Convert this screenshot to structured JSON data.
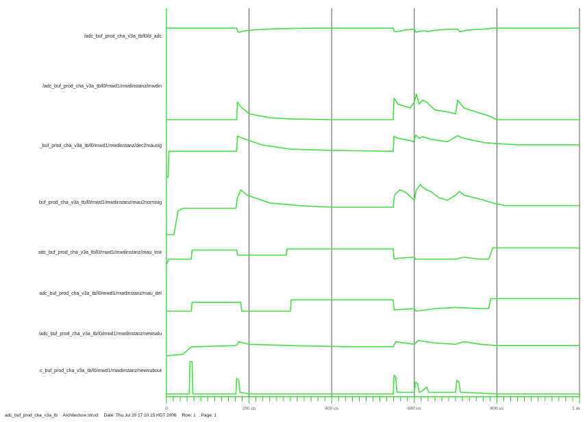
{
  "chart_data": {
    "type": "line",
    "title": "",
    "xlabel": "",
    "ylabel": "",
    "x_ticks": [
      "0",
      "200 us",
      "400 us",
      "600 us",
      "800 us",
      "1 m"
    ],
    "x_range": [
      0,
      1000
    ],
    "colors": {
      "trace": "#44dd44",
      "grid": "#555555",
      "axis": "#22cc22",
      "background": "#ffffff"
    },
    "series": [
      {
        "name": "/adc_buf_prod_cha_v3a_tb/l0/d_adc",
        "points": [
          [
            0,
            0.97
          ],
          [
            170,
            0.97
          ],
          [
            172,
            0.86
          ],
          [
            172,
            0.84
          ],
          [
            175,
            0.8
          ],
          [
            190,
            0.86
          ],
          [
            215,
            0.9
          ],
          [
            260,
            0.94
          ],
          [
            310,
            0.96
          ],
          [
            370,
            0.97
          ],
          [
            450,
            0.97
          ],
          [
            549,
            0.97
          ],
          [
            551,
            0.85
          ],
          [
            555,
            0.82
          ],
          [
            575,
            0.88
          ],
          [
            600,
            0.93
          ],
          [
            604,
            0.8
          ],
          [
            612,
            0.84
          ],
          [
            625,
            0.86
          ],
          [
            630,
            0.83
          ],
          [
            650,
            0.88
          ],
          [
            680,
            0.92
          ],
          [
            705,
            0.93
          ],
          [
            710,
            0.82
          ],
          [
            725,
            0.88
          ],
          [
            755,
            0.92
          ],
          [
            780,
            0.94
          ],
          [
            785,
            0.97
          ],
          [
            1000,
            0.97
          ]
        ]
      },
      {
        "name": "/adc_buf_prod_cha_v3a_tb/l0/mwd1/mwdinstanz/mwdin",
        "points": [
          [
            0,
            0.0
          ],
          [
            170,
            0.0
          ],
          [
            172,
            0.45
          ],
          [
            180,
            0.33
          ],
          [
            200,
            0.15
          ],
          [
            250,
            0.05
          ],
          [
            300,
            0.02
          ],
          [
            400,
            0.0
          ],
          [
            549,
            0.0
          ],
          [
            551,
            0.55
          ],
          [
            560,
            0.4
          ],
          [
            590,
            0.3
          ],
          [
            600,
            0.45
          ],
          [
            605,
            0.65
          ],
          [
            612,
            0.4
          ],
          [
            620,
            0.5
          ],
          [
            630,
            0.45
          ],
          [
            650,
            0.25
          ],
          [
            680,
            0.2
          ],
          [
            700,
            0.15
          ],
          [
            705,
            0.5
          ],
          [
            720,
            0.3
          ],
          [
            750,
            0.2
          ],
          [
            780,
            0.1
          ],
          [
            800,
            0.0
          ],
          [
            1000,
            0.0
          ]
        ]
      },
      {
        "name": "_buf_prod_cha_v3a_tb/l0/mwd1/mwdinstanz/dec2mausig",
        "points": [
          [
            0,
            0.0
          ],
          [
            4,
            0.0
          ],
          [
            6,
            0.6
          ],
          [
            170,
            0.6
          ],
          [
            172,
            0.95
          ],
          [
            185,
            0.9
          ],
          [
            230,
            0.75
          ],
          [
            300,
            0.65
          ],
          [
            400,
            0.62
          ],
          [
            549,
            0.6
          ],
          [
            551,
            0.95
          ],
          [
            560,
            0.9
          ],
          [
            590,
            0.85
          ],
          [
            598,
            0.82
          ],
          [
            604,
            0.98
          ],
          [
            612,
            0.9
          ],
          [
            620,
            0.94
          ],
          [
            640,
            0.88
          ],
          [
            680,
            0.82
          ],
          [
            705,
            0.96
          ],
          [
            720,
            0.9
          ],
          [
            770,
            0.8
          ],
          [
            800,
            0.78
          ],
          [
            850,
            0.75
          ],
          [
            1000,
            0.75
          ]
        ]
      },
      {
        "name": "buf_prod_cha_v3a_tb/l0/mwd1/mwdinstanz/mau2normsig",
        "points": [
          [
            0,
            0.0
          ],
          [
            18,
            0.0
          ],
          [
            28,
            0.45
          ],
          [
            40,
            0.5
          ],
          [
            168,
            0.5
          ],
          [
            172,
            0.7
          ],
          [
            180,
            0.85
          ],
          [
            195,
            0.75
          ],
          [
            250,
            0.6
          ],
          [
            320,
            0.55
          ],
          [
            400,
            0.52
          ],
          [
            549,
            0.52
          ],
          [
            552,
            0.75
          ],
          [
            565,
            0.85
          ],
          [
            580,
            0.8
          ],
          [
            600,
            0.65
          ],
          [
            605,
            0.85
          ],
          [
            615,
            0.95
          ],
          [
            620,
            0.9
          ],
          [
            630,
            0.85
          ],
          [
            640,
            0.82
          ],
          [
            660,
            0.7
          ],
          [
            680,
            0.65
          ],
          [
            700,
            0.75
          ],
          [
            710,
            0.82
          ],
          [
            720,
            0.75
          ],
          [
            770,
            0.65
          ],
          [
            790,
            0.6
          ],
          [
            820,
            0.55
          ],
          [
            1000,
            0.55
          ]
        ]
      },
      {
        "name": "adc_buf_prod_cha_v3a_tb/l0/mwd1/mwdinstanz/mau_inst",
        "points": [
          [
            0,
            0.0
          ],
          [
            2,
            0.0
          ],
          [
            5,
            0.2
          ],
          [
            60,
            0.2
          ],
          [
            62,
            0.65
          ],
          [
            170,
            0.65
          ],
          [
            172,
            0.4
          ],
          [
            290,
            0.4
          ],
          [
            292,
            0.7
          ],
          [
            549,
            0.7
          ],
          [
            551,
            0.2
          ],
          [
            560,
            0.25
          ],
          [
            600,
            0.3
          ],
          [
            603,
            0.2
          ],
          [
            650,
            0.2
          ],
          [
            700,
            0.2
          ],
          [
            720,
            0.3
          ],
          [
            760,
            0.2
          ],
          [
            780,
            0.2
          ],
          [
            790,
            0.75
          ],
          [
            1000,
            0.75
          ]
        ]
      },
      {
        "name": "adc_buf_prod_cha_v3a_tb/l0/mwd1/mwdinstanz/mau_del",
        "points": [
          [
            0,
            0.0
          ],
          [
            60,
            0.0
          ],
          [
            62,
            0.35
          ],
          [
            180,
            0.35
          ],
          [
            182,
            0.0
          ],
          [
            300,
            0.0
          ],
          [
            302,
            0.45
          ],
          [
            549,
            0.45
          ],
          [
            551,
            0.05
          ],
          [
            600,
            0.1
          ],
          [
            604,
            0.0
          ],
          [
            650,
            0.1
          ],
          [
            700,
            0.15
          ],
          [
            760,
            0.1
          ],
          [
            780,
            0.1
          ],
          [
            785,
            0.5
          ],
          [
            1000,
            0.5
          ]
        ]
      },
      {
        "name": "/adc_buf_prod_cha_v3a_tb/l0/mwd1/mwdinstanz/newsalu",
        "points": [
          [
            0,
            0.0
          ],
          [
            2,
            0.0
          ],
          [
            40,
            0.05
          ],
          [
            60,
            0.35
          ],
          [
            170,
            0.4
          ],
          [
            175,
            0.55
          ],
          [
            200,
            0.45
          ],
          [
            300,
            0.4
          ],
          [
            450,
            0.35
          ],
          [
            549,
            0.35
          ],
          [
            555,
            0.55
          ],
          [
            600,
            0.45
          ],
          [
            610,
            0.6
          ],
          [
            650,
            0.5
          ],
          [
            700,
            0.45
          ],
          [
            720,
            0.55
          ],
          [
            760,
            0.45
          ],
          [
            800,
            0.4
          ],
          [
            1000,
            0.4
          ]
        ]
      },
      {
        "name": "c_buf_prod_cha_v3a_tb/l0/mwd1/mwdinstanz/newsubout",
        "points": [
          [
            0,
            0.0
          ],
          [
            55,
            0.0
          ],
          [
            57,
            0.95
          ],
          [
            62,
            0.95
          ],
          [
            64,
            0.0
          ],
          [
            168,
            0.0
          ],
          [
            170,
            0.45
          ],
          [
            175,
            0.4
          ],
          [
            178,
            0.05
          ],
          [
            200,
            0.0
          ],
          [
            549,
            0.0
          ],
          [
            551,
            0.55
          ],
          [
            555,
            0.5
          ],
          [
            558,
            0.05
          ],
          [
            600,
            0.05
          ],
          [
            603,
            0.35
          ],
          [
            608,
            0.3
          ],
          [
            612,
            0.05
          ],
          [
            620,
            0.1
          ],
          [
            630,
            0.2
          ],
          [
            635,
            0.05
          ],
          [
            700,
            0.05
          ],
          [
            703,
            0.4
          ],
          [
            708,
            0.35
          ],
          [
            712,
            0.05
          ],
          [
            800,
            0.0
          ],
          [
            1000,
            0.0
          ]
        ]
      }
    ]
  },
  "status_bar": {
    "parts": [
      "adc_buf_prod_cha_v3a_tb",
      "Architecture:struct",
      "Date: Thu Jul 20 17:10:15 HDT 2006",
      "Row: 1",
      "Page: 1"
    ]
  }
}
